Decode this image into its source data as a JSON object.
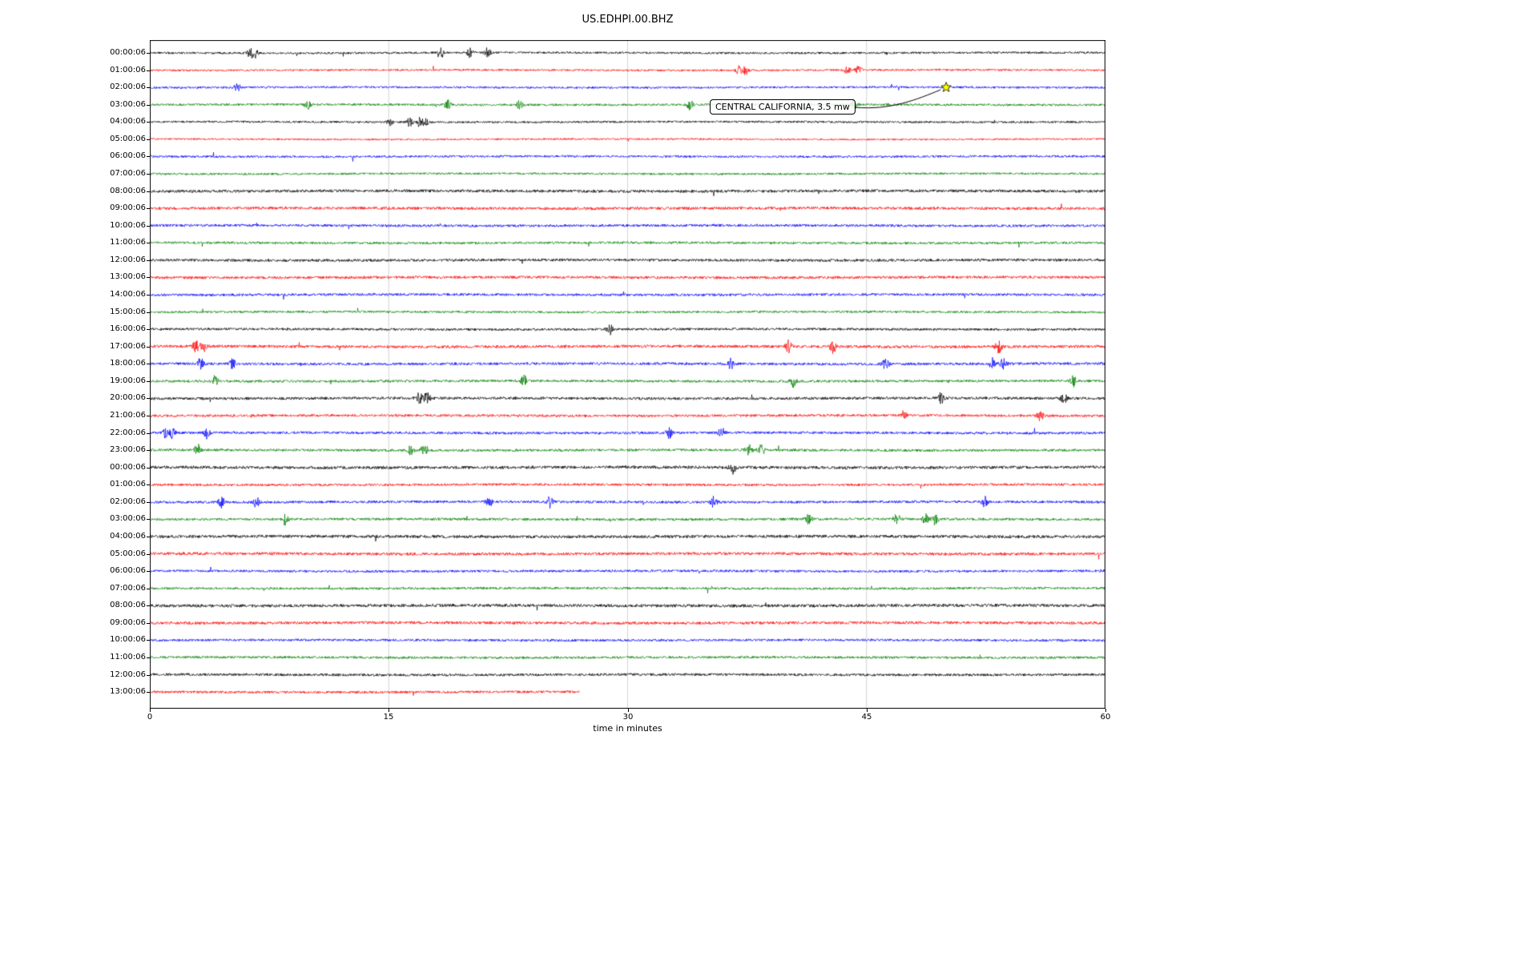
{
  "figure": {
    "title": "US.EDHPI.00.BHZ",
    "background": "#ffffff"
  },
  "chart_data": {
    "type": "line",
    "subtype": "seismogram-dayplot",
    "title": "US.EDHPI.00.BHZ",
    "xlabel": "time in minutes",
    "xlim": [
      0,
      60
    ],
    "x_ticks": [
      0,
      15,
      30,
      45,
      60
    ],
    "grid": {
      "vertical_minutes": [
        15,
        30,
        45
      ],
      "color": "#c8c8c8"
    },
    "trace_color_cycle": [
      "#000000",
      "#ff0000",
      "#0000ff",
      "#008000"
    ],
    "annotation": {
      "text": "CENTRAL CALIFORNIA, 3.5 mw",
      "marker": {
        "row_index": 2,
        "minute": 50.0,
        "symbol": "star",
        "fill": "#ffff00",
        "edge": "#000000"
      }
    },
    "rows": [
      {
        "label": "00:00:06",
        "color": "#000000",
        "amp": 1.3,
        "bursts": [
          6.3,
          6.6,
          18.3,
          20.1,
          21.2
        ],
        "end_minute": 60
      },
      {
        "label": "01:00:06",
        "color": "#ff0000",
        "amp": 1.2,
        "bursts": [
          37.0,
          37.4,
          43.8,
          44.5
        ],
        "end_minute": 60
      },
      {
        "label": "02:00:06",
        "color": "#0000ff",
        "amp": 1.3,
        "bursts": [
          5.5
        ],
        "end_minute": 60
      },
      {
        "label": "03:00:06",
        "color": "#008000",
        "amp": 1.4,
        "bursts": [
          9.9,
          18.7,
          23.2,
          33.9,
          44.2
        ],
        "end_minute": 60
      },
      {
        "label": "04:00:06",
        "color": "#000000",
        "amp": 1.3,
        "bursts": [
          15.1,
          16.3,
          16.9,
          17.3
        ],
        "end_minute": 60
      },
      {
        "label": "05:00:06",
        "color": "#ff0000",
        "amp": 1.1,
        "bursts": [],
        "end_minute": 60
      },
      {
        "label": "06:00:06",
        "color": "#0000ff",
        "amp": 1.4,
        "bursts": [],
        "end_minute": 60
      },
      {
        "label": "07:00:06",
        "color": "#008000",
        "amp": 1.3,
        "bursts": [],
        "end_minute": 60
      },
      {
        "label": "08:00:06",
        "color": "#000000",
        "amp": 1.8,
        "bursts": [],
        "end_minute": 60
      },
      {
        "label": "09:00:06",
        "color": "#ff0000",
        "amp": 1.8,
        "bursts": [],
        "end_minute": 60
      },
      {
        "label": "10:00:06",
        "color": "#0000ff",
        "amp": 1.6,
        "bursts": [],
        "end_minute": 60
      },
      {
        "label": "11:00:06",
        "color": "#008000",
        "amp": 1.5,
        "bursts": [],
        "end_minute": 60
      },
      {
        "label": "12:00:06",
        "color": "#000000",
        "amp": 1.7,
        "bursts": [],
        "end_minute": 60
      },
      {
        "label": "13:00:06",
        "color": "#ff0000",
        "amp": 1.7,
        "bursts": [],
        "end_minute": 60
      },
      {
        "label": "14:00:06",
        "color": "#0000ff",
        "amp": 1.6,
        "bursts": [],
        "end_minute": 60
      },
      {
        "label": "15:00:06",
        "color": "#008000",
        "amp": 1.4,
        "bursts": [],
        "end_minute": 60
      },
      {
        "label": "16:00:06",
        "color": "#000000",
        "amp": 1.5,
        "bursts": [
          28.9
        ],
        "end_minute": 60
      },
      {
        "label": "17:00:06",
        "color": "#ff0000",
        "amp": 1.8,
        "bursts": [
          2.9,
          3.4,
          40.1,
          42.9,
          53.3
        ],
        "end_minute": 60
      },
      {
        "label": "18:00:06",
        "color": "#0000ff",
        "amp": 1.7,
        "bursts": [
          3.2,
          5.2,
          36.5,
          46.2,
          52.9,
          53.6
        ],
        "end_minute": 60
      },
      {
        "label": "19:00:06",
        "color": "#008000",
        "amp": 1.6,
        "bursts": [
          4.1,
          23.5,
          40.4,
          58.0
        ],
        "end_minute": 60
      },
      {
        "label": "20:00:06",
        "color": "#000000",
        "amp": 1.7,
        "bursts": [
          16.9,
          17.4,
          49.7,
          57.4
        ],
        "end_minute": 60
      },
      {
        "label": "21:00:06",
        "color": "#ff0000",
        "amp": 1.6,
        "bursts": [
          47.3,
          55.9
        ],
        "end_minute": 60
      },
      {
        "label": "22:00:06",
        "color": "#0000ff",
        "amp": 1.6,
        "bursts": [
          0.9,
          1.4,
          3.6,
          32.6,
          35.9
        ],
        "end_minute": 60
      },
      {
        "label": "23:00:06",
        "color": "#008000",
        "amp": 1.6,
        "bursts": [
          3.0,
          16.4,
          17.2,
          37.6,
          38.4
        ],
        "end_minute": 60
      },
      {
        "label": "00:00:06",
        "color": "#000000",
        "amp": 1.9,
        "bursts": [
          36.6
        ],
        "end_minute": 60
      },
      {
        "label": "01:00:06",
        "color": "#ff0000",
        "amp": 1.5,
        "bursts": [],
        "end_minute": 60
      },
      {
        "label": "02:00:06",
        "color": "#0000ff",
        "amp": 1.6,
        "bursts": [
          4.5,
          6.7,
          21.3,
          25.1,
          35.4,
          52.4
        ],
        "end_minute": 60
      },
      {
        "label": "03:00:06",
        "color": "#008000",
        "amp": 1.6,
        "bursts": [
          8.5,
          41.4,
          46.9,
          48.7,
          49.3
        ],
        "end_minute": 60
      },
      {
        "label": "04:00:06",
        "color": "#000000",
        "amp": 1.9,
        "bursts": [],
        "end_minute": 60
      },
      {
        "label": "05:00:06",
        "color": "#ff0000",
        "amp": 1.8,
        "bursts": [],
        "end_minute": 60
      },
      {
        "label": "06:00:06",
        "color": "#0000ff",
        "amp": 1.5,
        "bursts": [],
        "end_minute": 60
      },
      {
        "label": "07:00:06",
        "color": "#008000",
        "amp": 1.5,
        "bursts": [],
        "end_minute": 60
      },
      {
        "label": "08:00:06",
        "color": "#000000",
        "amp": 1.9,
        "bursts": [],
        "end_minute": 60
      },
      {
        "label": "09:00:06",
        "color": "#ff0000",
        "amp": 1.8,
        "bursts": [],
        "end_minute": 60
      },
      {
        "label": "10:00:06",
        "color": "#0000ff",
        "amp": 1.5,
        "bursts": [],
        "end_minute": 60
      },
      {
        "label": "11:00:06",
        "color": "#008000",
        "amp": 1.5,
        "bursts": [],
        "end_minute": 60
      },
      {
        "label": "12:00:06",
        "color": "#000000",
        "amp": 1.6,
        "bursts": [],
        "end_minute": 60
      },
      {
        "label": "13:00:06",
        "color": "#ff0000",
        "amp": 1.5,
        "bursts": [],
        "end_minute": 27
      }
    ]
  }
}
